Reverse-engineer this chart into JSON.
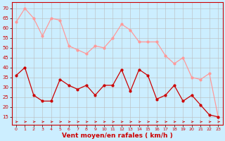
{
  "hours": [
    0,
    1,
    2,
    3,
    4,
    5,
    6,
    7,
    8,
    9,
    10,
    11,
    12,
    13,
    14,
    15,
    16,
    17,
    18,
    19,
    20,
    21,
    22,
    23
  ],
  "rafales": [
    63,
    70,
    65,
    56,
    65,
    64,
    51,
    49,
    47,
    51,
    50,
    55,
    62,
    59,
    53,
    53,
    53,
    46,
    42,
    45,
    35,
    34,
    37,
    15
  ],
  "moyen": [
    36,
    40,
    26,
    23,
    23,
    34,
    31,
    29,
    31,
    26,
    31,
    31,
    39,
    28,
    39,
    36,
    24,
    26,
    31,
    23,
    26,
    21,
    16,
    15
  ],
  "bg_color": "#cceeff",
  "grid_color": "#bbbbbb",
  "line_color_rafales": "#ff9999",
  "line_color_moyen": "#cc0000",
  "xlabel": "Vent moyen/en rafales ( km/h )",
  "xlabel_color": "#cc0000",
  "yticks": [
    15,
    20,
    25,
    30,
    35,
    40,
    45,
    50,
    55,
    60,
    65,
    70
  ],
  "ylim": [
    11,
    73
  ],
  "xlim": [
    -0.5,
    23.5
  ],
  "tick_color": "#cc0000",
  "marker": "o",
  "markersize": 2.0,
  "linewidth": 0.9
}
